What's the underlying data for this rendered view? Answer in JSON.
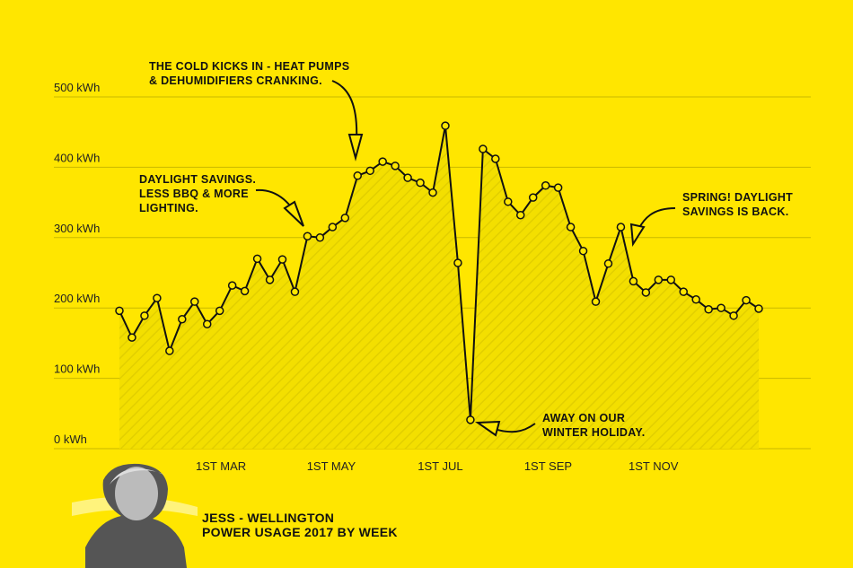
{
  "chart_data": {
    "type": "line",
    "title": [
      "JESS - WELLINGTON",
      "POWER USAGE 2017 BY WEEK"
    ],
    "x": [
      1,
      2,
      3,
      4,
      5,
      6,
      7,
      8,
      9,
      10,
      11,
      12,
      13,
      14,
      15,
      16,
      17,
      18,
      19,
      20,
      21,
      22,
      23,
      24,
      25,
      26,
      27,
      28,
      29,
      30,
      31,
      32,
      33,
      34,
      35,
      36,
      37,
      38,
      39,
      40,
      41,
      42,
      43,
      44,
      45,
      46,
      47,
      48,
      49,
      50,
      51,
      52
    ],
    "series": [
      {
        "color": "#111111",
        "values": [
          196,
          158,
          189,
          214,
          139,
          184,
          209,
          177,
          196,
          232,
          224,
          270,
          240,
          269,
          223,
          302,
          300,
          315,
          328,
          388,
          395,
          408,
          402,
          385,
          378,
          364,
          459,
          264,
          41,
          426,
          412,
          351,
          332,
          357,
          374,
          371,
          315,
          281,
          209,
          263,
          315,
          238,
          222,
          240,
          240,
          223,
          212,
          198,
          200,
          189,
          211,
          199
        ]
      }
    ],
    "xlim": [
      1,
      52
    ],
    "xticks": [
      {
        "value": 9.1,
        "label": "1ST MAR"
      },
      {
        "value": 17.9,
        "label": "1ST MAY"
      },
      {
        "value": 26.6,
        "label": "1ST JUL"
      },
      {
        "value": 35.2,
        "label": "1ST SEP"
      },
      {
        "value": 43.6,
        "label": "1ST NOV"
      }
    ],
    "ylim": [
      0,
      500
    ],
    "yticks": [
      {
        "value": 0,
        "label": "0 kWh"
      },
      {
        "value": 100,
        "label": "100 kWh"
      },
      {
        "value": 200,
        "label": "200 kWh"
      },
      {
        "value": 300,
        "label": "300 kWh"
      },
      {
        "value": 400,
        "label": "400 kWh"
      },
      {
        "value": 500,
        "label": "500 kWh"
      }
    ],
    "grid": true,
    "annotations": [
      [
        "THE COLD KICKS IN - HEAT PUMPS",
        "& DEHUMIDIFIERS CRANKING."
      ],
      [
        "DAYLIGHT SAVINGS.",
        "LESS BBQ & MORE",
        "LIGHTING."
      ],
      [
        "SPRING! DAYLIGHT",
        "SAVINGS IS BACK."
      ],
      [
        "AWAY ON OUR",
        "WINTER HOLIDAY."
      ]
    ]
  }
}
